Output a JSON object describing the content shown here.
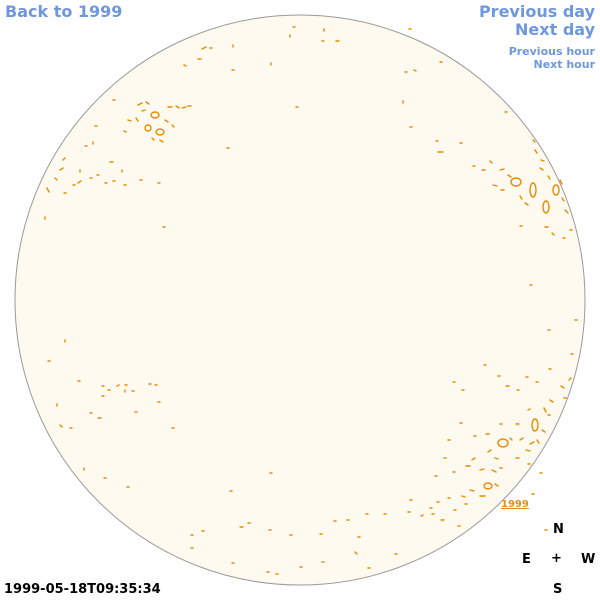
{
  "nav": {
    "back_label": "Back to 1999",
    "previous_day": "Previous day",
    "next_day": "Next day",
    "previous_hour": "Previous hour",
    "next_hour": "Next hour"
  },
  "timestamp": "1999-05-18T09:35:34",
  "overlay_year": "1999",
  "compass": {
    "north": "N",
    "east": "E",
    "center": "+",
    "west": "W",
    "south": "S"
  },
  "colors": {
    "disk_fill": "#fffaef",
    "disk_outline": "#9a9a9a",
    "contour": "#e88a00",
    "link": "#6f97e0"
  }
}
